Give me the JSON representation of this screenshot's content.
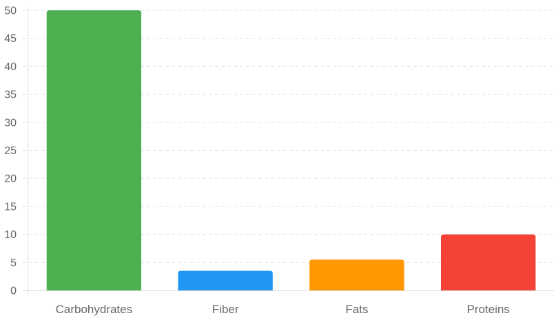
{
  "chart_data": {
    "type": "bar",
    "categories": [
      "Carbohydrates",
      "Fiber",
      "Fats",
      "Proteins"
    ],
    "values": [
      50,
      3.5,
      5.5,
      10
    ],
    "colors": [
      "#4caf50",
      "#2196f3",
      "#ff9800",
      "#f44336"
    ],
    "ylim": [
      0,
      50
    ],
    "yticks": [
      0,
      5,
      10,
      15,
      20,
      25,
      30,
      35,
      40,
      45,
      50
    ],
    "grid": true,
    "legend": "none",
    "title": "",
    "xlabel": "",
    "ylabel": ""
  }
}
